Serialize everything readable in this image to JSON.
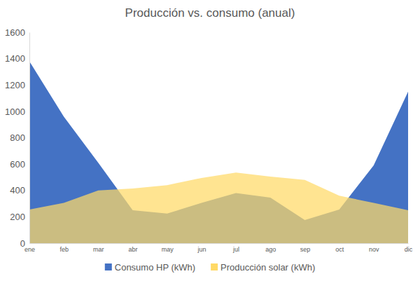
{
  "chart_data": {
    "type": "area",
    "title": "Producción vs. consumo (anual)",
    "categories": [
      "ene",
      "feb",
      "mar",
      "abr",
      "may",
      "jun",
      "jul",
      "ago",
      "sep",
      "oct",
      "nov",
      "dic"
    ],
    "series": [
      {
        "name": "Consumo HP (kWh)",
        "color": "#4472c4",
        "values": [
          1380,
          960,
          610,
          250,
          225,
          305,
          380,
          345,
          175,
          255,
          590,
          1150
        ]
      },
      {
        "name": "Producción solar (kWh)",
        "color": "#ffd966",
        "values": [
          255,
          305,
          400,
          415,
          440,
          495,
          535,
          505,
          480,
          360,
          305,
          250
        ]
      }
    ],
    "ylim": [
      0,
      1600
    ],
    "yticks": [
      0,
      200,
      400,
      600,
      800,
      1000,
      1200,
      1400,
      1600
    ],
    "grid": false,
    "legend": "bottom"
  }
}
